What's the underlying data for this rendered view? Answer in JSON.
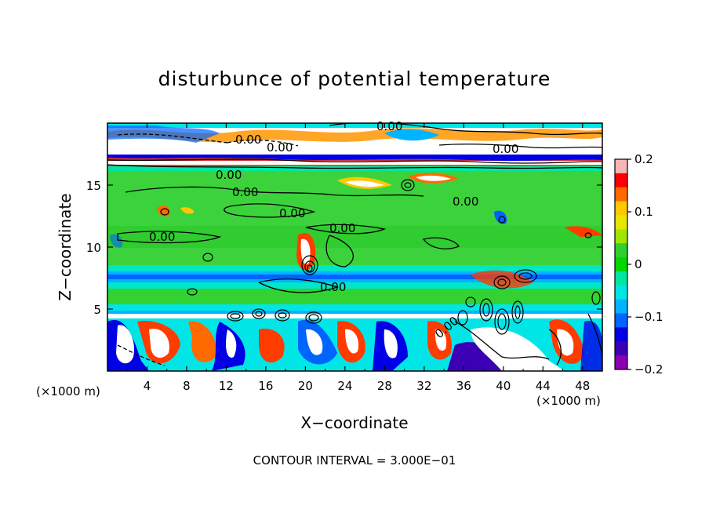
{
  "chart_data": {
    "type": "heatmap",
    "title": "disturbunce of potential temperature",
    "xlabel": "X−coordinate",
    "ylabel": "Z−coordinate",
    "x_unit_left": "(×1000 m)",
    "x_unit_right": "(×1000 m)",
    "footer": "CONTOUR INTERVAL = 3.000E−01",
    "x_ticks": [
      "4",
      "8",
      "12",
      "16",
      "20",
      "24",
      "28",
      "32",
      "36",
      "40",
      "44",
      "48"
    ],
    "y_ticks": [
      "5",
      "10",
      "15"
    ],
    "xlim": [
      0,
      50
    ],
    "ylim": [
      0,
      20
    ],
    "colorbar": {
      "range": [
        -0.2,
        0.2
      ],
      "tick_labels": [
        "0.2",
        "0.1",
        "0",
        "−0.1",
        "−0.2"
      ],
      "colors": [
        "#f6b6b6",
        "#ff0000",
        "#ff6a00",
        "#ffc800",
        "#e6e600",
        "#a0e600",
        "#32cd32",
        "#00d800",
        "#00e6a0",
        "#00e6e6",
        "#00b4ff",
        "#0064ff",
        "#0000e6",
        "#3c00b4",
        "#8c00b4"
      ]
    },
    "contour_labels": [
      "0.00",
      "0.00",
      "0.00",
      "0.00",
      "0.00",
      "0.00",
      "0.00",
      "0.00",
      "0.00",
      "0.00",
      "0.00",
      "0.00"
    ],
    "contour_interval": 0.3
  }
}
